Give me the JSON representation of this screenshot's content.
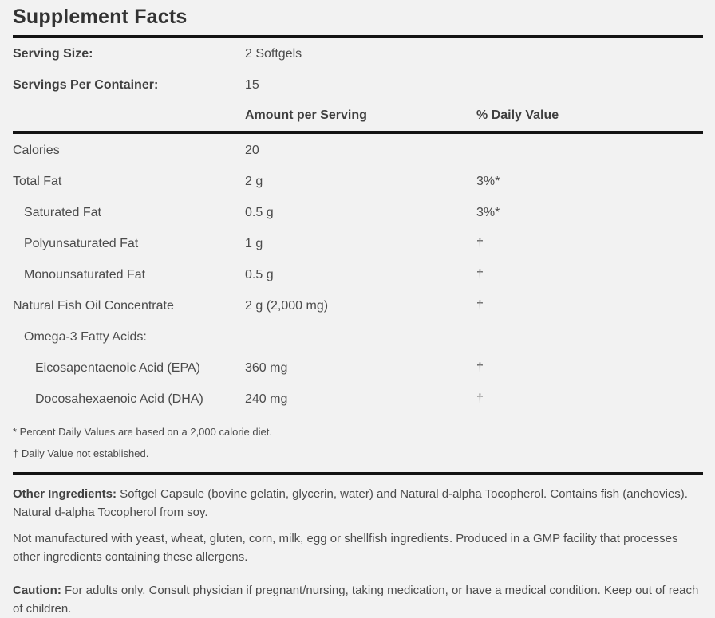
{
  "panel": {
    "title": "Supplement Facts",
    "serving_info": [
      {
        "label": "Serving Size:",
        "value": "2 Softgels"
      },
      {
        "label": "Servings Per Container:",
        "value": "15"
      }
    ],
    "columns": {
      "amount": "Amount per Serving",
      "dv": "% Daily Value"
    },
    "rows": [
      {
        "label": "Calories",
        "amount": "20",
        "dv": "",
        "indent": 0
      },
      {
        "label": "Total Fat",
        "amount": "2 g",
        "dv": "3%*",
        "indent": 0
      },
      {
        "label": "Saturated Fat",
        "amount": "0.5 g",
        "dv": "3%*",
        "indent": 1
      },
      {
        "label": "Polyunsaturated Fat",
        "amount": "1 g",
        "dv": "†",
        "indent": 1
      },
      {
        "label": "Monounsaturated Fat",
        "amount": "0.5 g",
        "dv": "†",
        "indent": 1
      },
      {
        "label": "Natural Fish Oil Concentrate",
        "amount": "2 g (2,000 mg)",
        "dv": "†",
        "indent": 0
      },
      {
        "label": "Omega-3 Fatty Acids:",
        "amount": "",
        "dv": "",
        "indent": 1
      },
      {
        "label": "Eicosapentaenoic Acid (EPA)",
        "amount": "360 mg",
        "dv": "†",
        "indent": 2
      },
      {
        "label": "Docosahexaenoic Acid (DHA)",
        "amount": "240 mg",
        "dv": "†",
        "indent": 2
      }
    ],
    "footnotes": [
      "* Percent Daily Values are based on a 2,000 calorie diet.",
      "† Daily Value not established."
    ],
    "paragraphs": [
      {
        "bold": "Other Ingredients:",
        "text": " Softgel Capsule (bovine gelatin, glycerin, water) and Natural d-alpha Tocopherol. Contains fish (anchovies). Natural d-alpha Tocopherol from soy."
      },
      {
        "bold": "",
        "text": "Not manufactured with yeast, wheat, gluten, corn, milk, egg or shellfish ingredients. Produced in a GMP facility that processes other ingredients containing these allergens."
      },
      {
        "bold": "Caution:",
        "text": " For adults only. Consult physician if pregnant/nursing, taking medication, or have a medical condition. Keep out of reach of children."
      }
    ],
    "colors": {
      "background": "#f2f2f2",
      "rule": "#141414",
      "title_text": "#333333",
      "body_text": "#4b4b4b"
    }
  }
}
